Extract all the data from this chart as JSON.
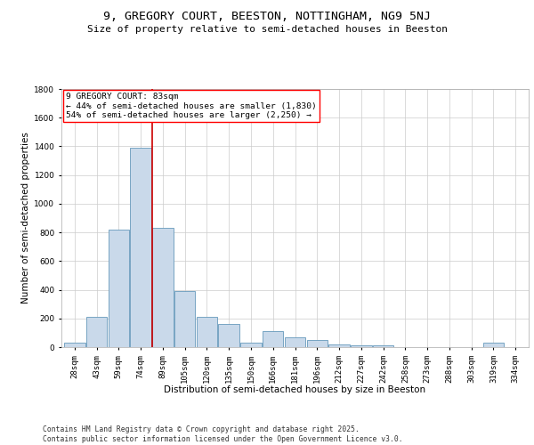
{
  "title": "9, GREGORY COURT, BEESTON, NOTTINGHAM, NG9 5NJ",
  "subtitle": "Size of property relative to semi-detached houses in Beeston",
  "xlabel": "Distribution of semi-detached houses by size in Beeston",
  "ylabel": "Number of semi-detached properties",
  "categories": [
    "28sqm",
    "43sqm",
    "59sqm",
    "74sqm",
    "89sqm",
    "105sqm",
    "120sqm",
    "135sqm",
    "150sqm",
    "166sqm",
    "181sqm",
    "196sqm",
    "212sqm",
    "227sqm",
    "242sqm",
    "258sqm",
    "273sqm",
    "288sqm",
    "303sqm",
    "319sqm",
    "334sqm"
  ],
  "values": [
    30,
    210,
    820,
    1390,
    830,
    390,
    210,
    160,
    30,
    110,
    70,
    50,
    20,
    10,
    10,
    0,
    0,
    0,
    0,
    30,
    0
  ],
  "bar_color": "#c9d9ea",
  "bar_edge_color": "#6699bb",
  "grid_color": "#cccccc",
  "background_color": "#ffffff",
  "annotation_line1": "9 GREGORY COURT: 83sqm",
  "annotation_line2": "← 44% of semi-detached houses are smaller (1,830)",
  "annotation_line3": "54% of semi-detached houses are larger (2,250) →",
  "vline_x_index": 3.53,
  "vline_color": "#cc0000",
  "ylim": [
    0,
    1800
  ],
  "yticks": [
    0,
    200,
    400,
    600,
    800,
    1000,
    1200,
    1400,
    1600,
    1800
  ],
  "footer_line1": "Contains HM Land Registry data © Crown copyright and database right 2025.",
  "footer_line2": "Contains public sector information licensed under the Open Government Licence v3.0.",
  "title_fontsize": 9.5,
  "subtitle_fontsize": 8,
  "axis_label_fontsize": 7.5,
  "tick_fontsize": 6.5,
  "annotation_fontsize": 6.8,
  "footer_fontsize": 5.8
}
